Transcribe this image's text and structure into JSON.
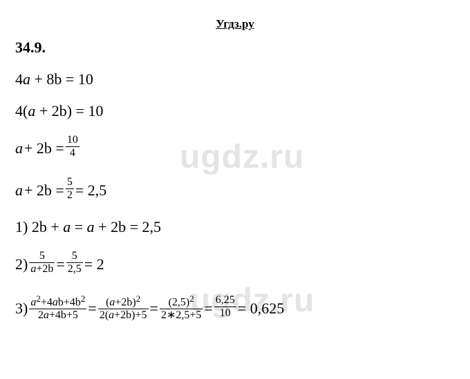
{
  "header": {
    "site": "Угдз.ру"
  },
  "problem": {
    "number": "34.9."
  },
  "lines": {
    "l1_a": "4",
    "l1_b": "a",
    "l1_c": " + 8b = 10",
    "l2_a": "4(",
    "l2_b": "a",
    "l2_c": " + 2b) = 10",
    "l3_a": "a",
    "l3_b": " + 2b = ",
    "l4_a": "a",
    "l4_b": " + 2b = ",
    "l4_c": " = 2,5",
    "l5_a": "1) 2b + ",
    "l5_b": "a",
    "l5_c": " = ",
    "l5_d": "a",
    "l5_e": " + 2b = 2,5",
    "l6_a": "2) ",
    "l6_b": " = ",
    "l6_c": " = 2",
    "l7_a": "3) ",
    "l7_b": " = ",
    "l7_c": " = ",
    "l7_d": " = ",
    "l7_e": " = 0,625"
  },
  "fracs": {
    "f1": {
      "num": "10",
      "den": "4"
    },
    "f2": {
      "num": "5",
      "den": "2"
    },
    "f3": {
      "num": "5",
      "den_a": "a",
      "den_b": "+2b"
    },
    "f4": {
      "num": "5",
      "den": "2,5"
    },
    "f5": {
      "num_a": "a",
      "num_b": "2",
      "num_c": "+4",
      "num_d": "a",
      "num_e": "b+4b",
      "num_f": "2",
      "den_a": "2",
      "den_b": "a",
      "den_c": "+4b+5"
    },
    "f6": {
      "num_a": "(",
      "num_b": "a",
      "num_c": "+2b)",
      "num_d": "2",
      "den_a": "2(",
      "den_b": "a",
      "den_c": "+2b)+5"
    },
    "f7": {
      "num_a": "(2,5)",
      "num_b": "2",
      "den": "2∗2,5+5"
    },
    "f8": {
      "num": "6,25",
      "den": "10"
    }
  },
  "watermark": {
    "text": "ugdz.ru"
  },
  "colors": {
    "text": "#000000",
    "bg": "#ffffff",
    "wm": "#e4e4e4"
  }
}
